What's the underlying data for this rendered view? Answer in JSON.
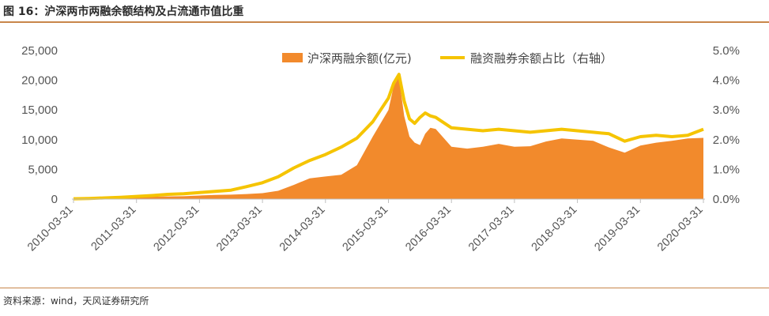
{
  "figure_title": "图 16：沪深两市两融余额结构及占流通市值比重",
  "source": "资料来源：wind，天风证券研究所",
  "chart_data": {
    "type": "area",
    "title": "",
    "x": [
      "2010-03",
      "2010-06",
      "2010-09",
      "2010-12",
      "2011-03",
      "2011-06",
      "2011-09",
      "2011-12",
      "2012-03",
      "2012-06",
      "2012-09",
      "2012-12",
      "2013-03",
      "2013-06",
      "2013-09",
      "2013-12",
      "2014-03",
      "2014-06",
      "2014-09",
      "2014-12",
      "2015-03",
      "2015-04",
      "2015-05",
      "2015-06",
      "2015-07",
      "2015-08",
      "2015-09",
      "2015-10",
      "2015-11",
      "2015-12",
      "2016-03",
      "2016-06",
      "2016-09",
      "2016-12",
      "2017-03",
      "2017-06",
      "2017-09",
      "2017-12",
      "2018-03",
      "2018-06",
      "2018-09",
      "2018-12",
      "2019-03",
      "2019-06",
      "2019-09",
      "2019-12",
      "2020-03"
    ],
    "x_tick_labels": [
      "2010-03-31",
      "2011-03-31",
      "2012-03-31",
      "2013-03-31",
      "2014-03-31",
      "2015-03-31",
      "2016-03-31",
      "2017-03-31",
      "2018-03-31",
      "2019-03-31",
      "2020-03-31"
    ],
    "series": [
      {
        "name": "沪深两融余额(亿元)",
        "type": "area",
        "axis": "left",
        "color": "#f28a2c",
        "values": [
          10,
          50,
          120,
          150,
          300,
          400,
          450,
          480,
          600,
          700,
          750,
          850,
          1000,
          1400,
          2400,
          3500,
          3800,
          4100,
          5700,
          10500,
          15000,
          19000,
          20500,
          14000,
          10500,
          9500,
          9100,
          11000,
          12000,
          11800,
          8800,
          8500,
          8800,
          9300,
          8800,
          8900,
          9700,
          10200,
          10000,
          9800,
          8700,
          7800,
          9000,
          9500,
          9800,
          10200,
          10300
        ]
      },
      {
        "name": "融资融券余额占比（右轴）",
        "type": "line",
        "axis": "right",
        "color": "#f5c400",
        "values": [
          0.01,
          0.02,
          0.04,
          0.06,
          0.09,
          0.12,
          0.16,
          0.18,
          0.22,
          0.26,
          0.3,
          0.42,
          0.55,
          0.75,
          1.05,
          1.3,
          1.5,
          1.75,
          2.05,
          2.6,
          3.4,
          3.9,
          4.2,
          3.3,
          2.7,
          2.55,
          2.75,
          2.9,
          2.8,
          2.75,
          2.4,
          2.35,
          2.3,
          2.35,
          2.3,
          2.25,
          2.3,
          2.35,
          2.3,
          2.25,
          2.2,
          1.95,
          2.1,
          2.15,
          2.1,
          2.15,
          2.35
        ]
      }
    ],
    "y_left": {
      "ylim": [
        0,
        25000
      ],
      "ticks": [
        "0",
        "5,000",
        "10,000",
        "15,000",
        "20,000",
        "25,000"
      ]
    },
    "y_right": {
      "ylim": [
        0,
        5.0
      ],
      "ticks": [
        "0.0%",
        "1.0%",
        "2.0%",
        "3.0%",
        "4.0%",
        "5.0%"
      ]
    },
    "legend": "top-center",
    "grid": false
  }
}
